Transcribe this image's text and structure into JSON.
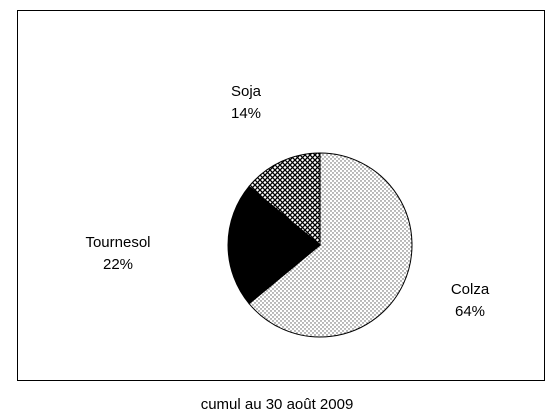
{
  "chart_data": {
    "type": "pie",
    "categories": [
      "Colza",
      "Tournesol",
      "Soja"
    ],
    "values": [
      64,
      22,
      14
    ],
    "value_labels": [
      "64%",
      "22%",
      "14%"
    ],
    "colors": [
      "#d4d4d4",
      "#000000",
      "#8a8a8a"
    ],
    "caption": "cumul au 30 août 2009"
  }
}
